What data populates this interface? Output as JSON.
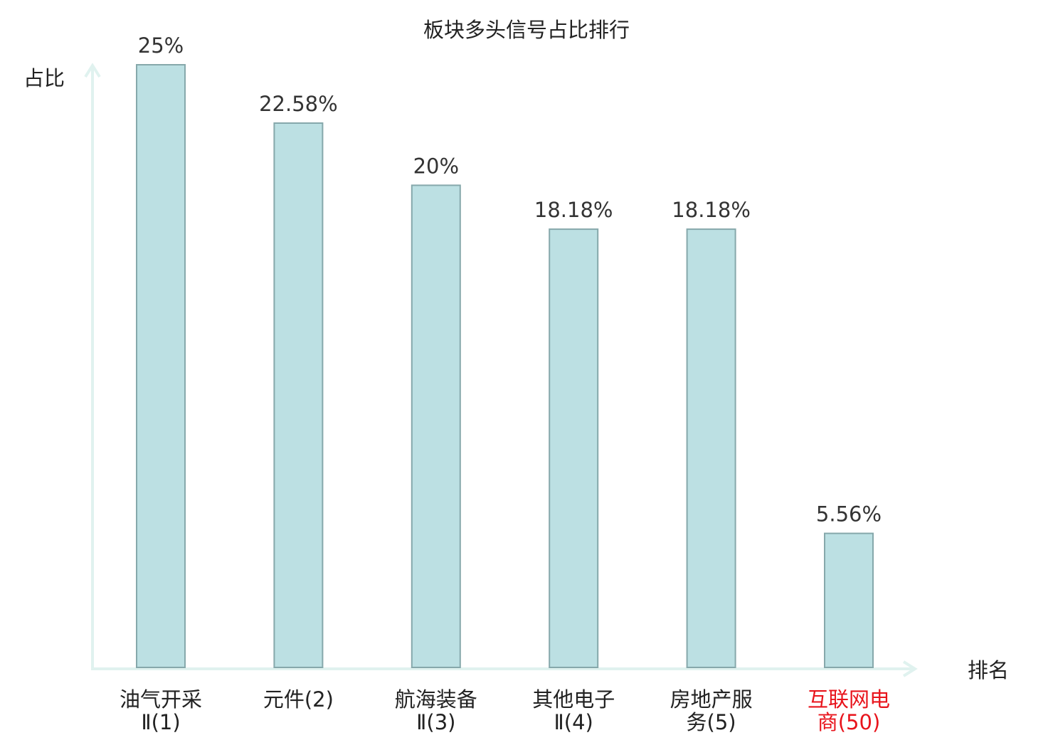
{
  "chart_data": {
    "type": "bar",
    "title": "板块多头信号占比排行",
    "ylabel": "占比",
    "xlabel": "排名",
    "categories": [
      {
        "label_lines": [
          "油气开采",
          "Ⅱ(1)"
        ],
        "highlight": false
      },
      {
        "label_lines": [
          "元件(2)"
        ],
        "highlight": false
      },
      {
        "label_lines": [
          "航海装备",
          "Ⅱ(3)"
        ],
        "highlight": false
      },
      {
        "label_lines": [
          "其他电子",
          "Ⅱ(4)"
        ],
        "highlight": false
      },
      {
        "label_lines": [
          "房地产服",
          "务(5)"
        ],
        "highlight": false
      },
      {
        "label_lines": [
          "互联网电",
          "商(50)"
        ],
        "highlight": true
      }
    ],
    "values": [
      25,
      22.58,
      20,
      18.18,
      18.18,
      5.56
    ],
    "value_labels": [
      "25%",
      "22.58%",
      "20%",
      "18.18%",
      "18.18%",
      "5.56%"
    ],
    "ylim": [
      0,
      25
    ],
    "grid": false,
    "colors": {
      "bar_fill": "#bce0e3",
      "bar_stroke": "#86a8ab",
      "axis": "#e0f2ef",
      "text": "#333333",
      "highlight_text": "#e8141c"
    }
  }
}
